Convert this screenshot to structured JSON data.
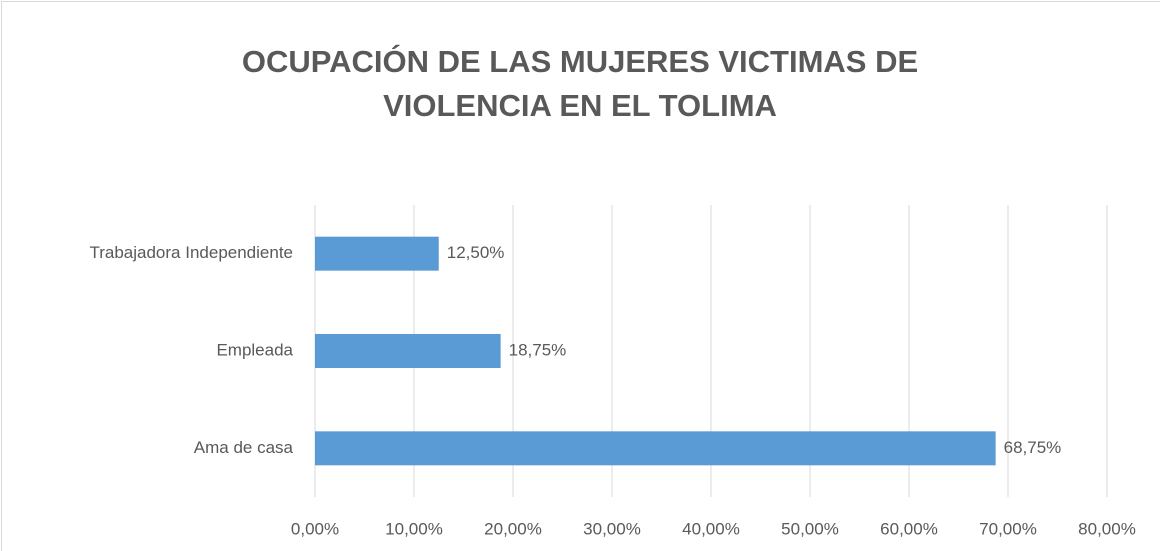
{
  "chart_data": {
    "type": "barh",
    "title": "OCUPACIÓN DE LAS MUJERES VICTIMAS DE VIOLENCIA EN EL TOLIMA",
    "categories": [
      "Ama de casa",
      "Empleada",
      "Trabajadora Independiente"
    ],
    "values": [
      68.75,
      18.75,
      12.5
    ],
    "value_labels": [
      "68,75%",
      "18,75%",
      "12,50%"
    ],
    "color": "#5b9bd5",
    "xlim": [
      0,
      80
    ],
    "xticks": [
      {
        "value": 0,
        "label": "0,00%"
      },
      {
        "value": 10,
        "label": "10,00%"
      },
      {
        "value": 20,
        "label": "20,00%"
      },
      {
        "value": 30,
        "label": "30,00%"
      },
      {
        "value": 40,
        "label": "40,00%"
      },
      {
        "value": 50,
        "label": "50,00%"
      },
      {
        "value": 60,
        "label": "60,00%"
      },
      {
        "value": 70,
        "label": "70,00%"
      },
      {
        "value": 80,
        "label": "80,00%"
      }
    ],
    "grid": true
  }
}
